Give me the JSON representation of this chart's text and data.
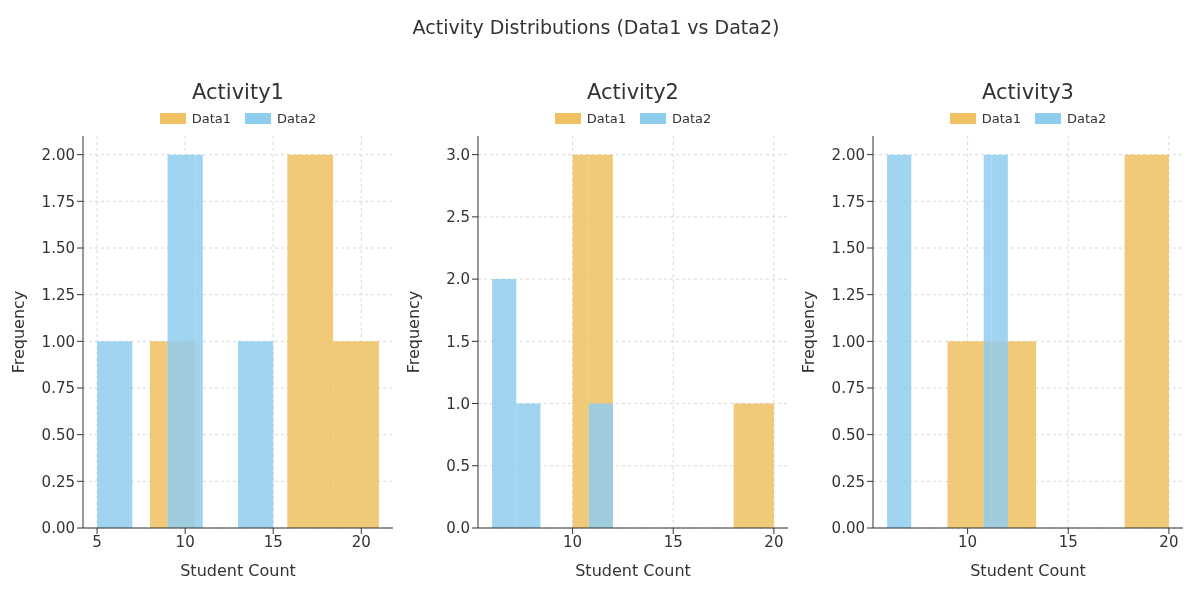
{
  "chart_data": [
    {
      "type": "histogram",
      "title": "Activity1",
      "xlabel": "Student Count",
      "ylabel": "Frequency",
      "annotations": [
        "Activity Distributions (Data1 vs Data2)"
      ],
      "bins": [
        5,
        7,
        8,
        9,
        10.6,
        11,
        13,
        15,
        15.8,
        18.4,
        21
      ],
      "series": [
        {
          "name": "Data1",
          "color": "#efc162",
          "values": [
            0,
            0,
            1,
            1,
            0,
            0,
            0,
            0,
            2,
            1
          ]
        },
        {
          "name": "Data2",
          "color": "#8fcdee",
          "values": [
            1,
            0,
            0,
            2,
            2,
            0,
            1,
            0,
            0,
            0
          ]
        }
      ],
      "xlim": [
        4.2,
        21.8
      ],
      "xticks": [
        5,
        10,
        15,
        20
      ],
      "ylim": [
        0,
        2.1
      ],
      "yticks": [
        {
          "value": 0,
          "label": "0.00"
        },
        {
          "value": 0.25,
          "label": "0.25"
        },
        {
          "value": 0.5,
          "label": "0.50"
        },
        {
          "value": 0.75,
          "label": "0.75"
        },
        {
          "value": 1,
          "label": "1.00"
        },
        {
          "value": 1.25,
          "label": "1.25"
        },
        {
          "value": 1.5,
          "label": "1.50"
        },
        {
          "value": 1.75,
          "label": "1.75"
        },
        {
          "value": 2,
          "label": "2.00"
        }
      ],
      "grid": true,
      "legend": "top"
    },
    {
      "type": "histogram",
      "title": "Activity2",
      "xlabel": "Student Count",
      "ylabel": "Frequency",
      "bins": [
        6,
        7.2,
        8.4,
        10,
        10.8,
        12,
        18,
        20
      ],
      "series": [
        {
          "name": "Data1",
          "color": "#efc162",
          "values": [
            0,
            0,
            0,
            3,
            3,
            0,
            1
          ]
        },
        {
          "name": "Data2",
          "color": "#8fcdee",
          "values": [
            2,
            1,
            0,
            0,
            1,
            0,
            0
          ]
        }
      ],
      "xlim": [
        5.3,
        20.7
      ],
      "xticks": [
        10,
        15,
        20
      ],
      "ylim": [
        0,
        3.15
      ],
      "yticks": [
        {
          "value": 0,
          "label": "0.0"
        },
        {
          "value": 0.5,
          "label": "0.5"
        },
        {
          "value": 1,
          "label": "1.0"
        },
        {
          "value": 1.5,
          "label": "1.5"
        },
        {
          "value": 2,
          "label": "2.0"
        },
        {
          "value": 2.5,
          "label": "2.5"
        },
        {
          "value": 3,
          "label": "3.0"
        }
      ],
      "grid": true,
      "legend": "top"
    },
    {
      "type": "histogram",
      "title": "Activity3",
      "xlabel": "Student Count",
      "ylabel": "Frequency",
      "bins": [
        6,
        7.2,
        9,
        10.8,
        11.2,
        12,
        13.4,
        17.8,
        20
      ],
      "series": [
        {
          "name": "Data1",
          "color": "#efc162",
          "values": [
            0,
            0,
            1,
            1,
            1,
            1,
            0,
            2
          ]
        },
        {
          "name": "Data2",
          "color": "#8fcdee",
          "values": [
            2,
            0,
            0,
            2,
            2,
            0,
            0,
            0
          ]
        }
      ],
      "xlim": [
        5.3,
        20.7
      ],
      "xticks": [
        10,
        15,
        20
      ],
      "ylim": [
        0,
        2.1
      ],
      "yticks": [
        {
          "value": 0,
          "label": "0.00"
        },
        {
          "value": 0.25,
          "label": "0.25"
        },
        {
          "value": 0.5,
          "label": "0.50"
        },
        {
          "value": 0.75,
          "label": "0.75"
        },
        {
          "value": 1,
          "label": "1.00"
        },
        {
          "value": 1.25,
          "label": "1.25"
        },
        {
          "value": 1.5,
          "label": "1.50"
        },
        {
          "value": 1.75,
          "label": "1.75"
        },
        {
          "value": 2,
          "label": "2.00"
        }
      ],
      "grid": true,
      "legend": "top"
    }
  ]
}
